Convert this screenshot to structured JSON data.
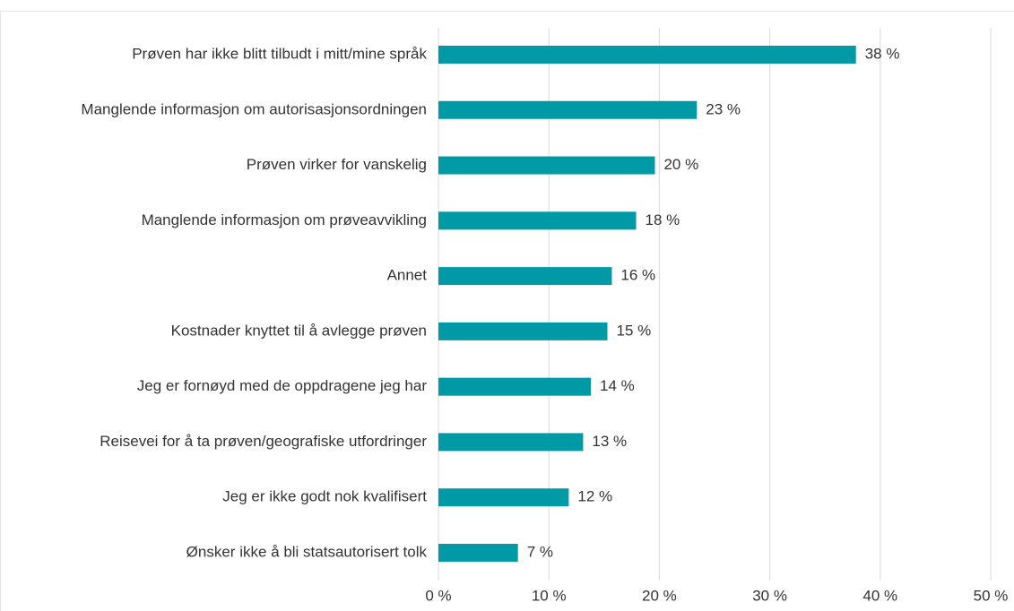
{
  "chart_data": {
    "type": "bar",
    "orientation": "horizontal",
    "categories": [
      "Prøven har ikke blitt tilbudt i mitt/mine språk",
      "Manglende informasjon om autorisasjonsordningen",
      "Prøven virker for vanskelig",
      "Manglende informasjon om prøveavvikling",
      "Annet",
      "Kostnader knyttet til å avlegge prøven",
      "Jeg er fornøyd med de oppdragene jeg har",
      "Reisevei for å ta prøven/geografiske utfordringer",
      "Jeg er ikke godt nok kvalifisert",
      "Ønsker ikke å bli statsautorisert tolk"
    ],
    "values": [
      37.8,
      23.4,
      19.6,
      17.9,
      15.7,
      15.3,
      13.8,
      13.1,
      11.8,
      7.2
    ],
    "value_labels": [
      "38 %",
      "23 %",
      "20 %",
      "18 %",
      "16 %",
      "15 %",
      "14 %",
      "13 %",
      "12 %",
      "7 %"
    ],
    "color": "#009aa6",
    "xlim": [
      0,
      50
    ],
    "xticks": [
      {
        "value": 0,
        "label": "0 %"
      },
      {
        "value": 10,
        "label": "10 %"
      },
      {
        "value": 20,
        "label": "20 %"
      },
      {
        "value": 30,
        "label": "30 %"
      },
      {
        "value": 40,
        "label": "40 %"
      },
      {
        "value": 50,
        "label": "50 %"
      }
    ],
    "grid": true
  }
}
